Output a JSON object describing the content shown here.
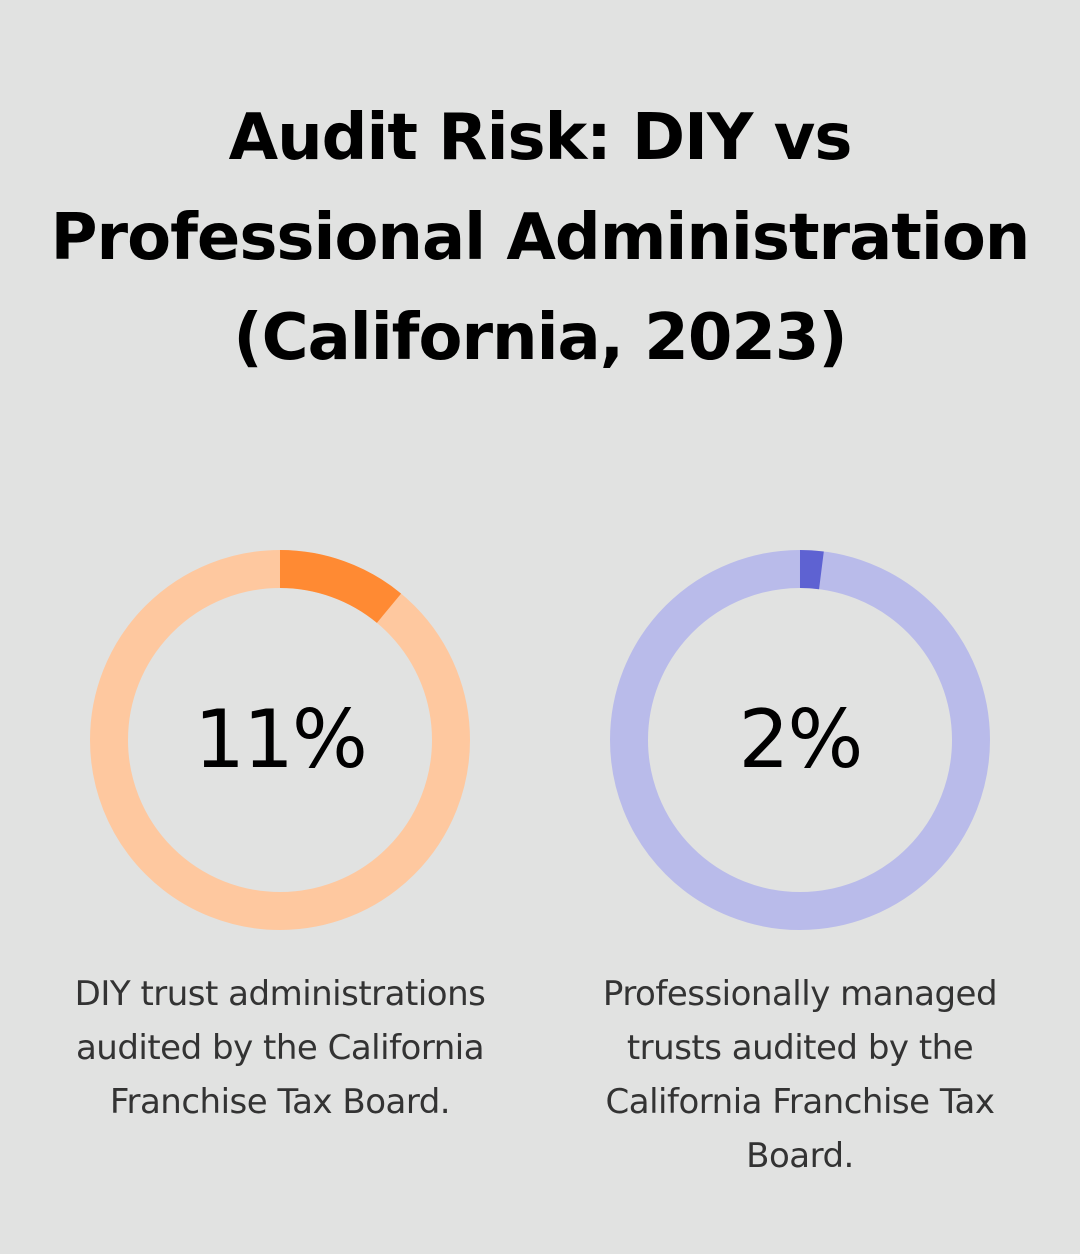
{
  "title": "Audit Risk: DIY vs Professional Administration (California, 2023)",
  "chart_data": [
    {
      "type": "pie",
      "variant": "donut",
      "value": 11,
      "value_label": "11%",
      "caption": "DIY trust administrations audited by the California Franchise Tax Board.",
      "colors": {
        "filled": "#ff8a33",
        "remainder": "#fec89f"
      }
    },
    {
      "type": "pie",
      "variant": "donut",
      "value": 2,
      "value_label": "2%",
      "caption": "Professionally managed trusts audited by the California Franchise Tax Board.",
      "colors": {
        "filled": "#5e62d2",
        "remainder": "#b9bbea"
      }
    }
  ]
}
